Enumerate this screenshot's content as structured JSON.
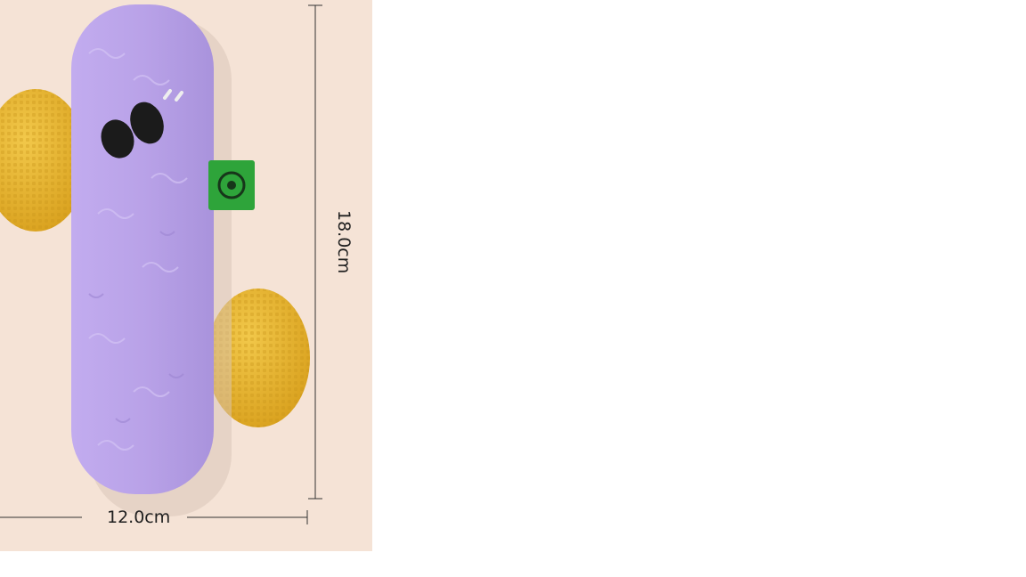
{
  "product": {
    "name": "plush-stick-toy",
    "body_color": "#b9a2e8",
    "ball_color": "#e7b52e",
    "tag_color": "#2ea43a",
    "background_color": "#f5e3d6"
  },
  "dimensions": {
    "width_label": "12.0cm",
    "height_label": "18.0cm"
  }
}
